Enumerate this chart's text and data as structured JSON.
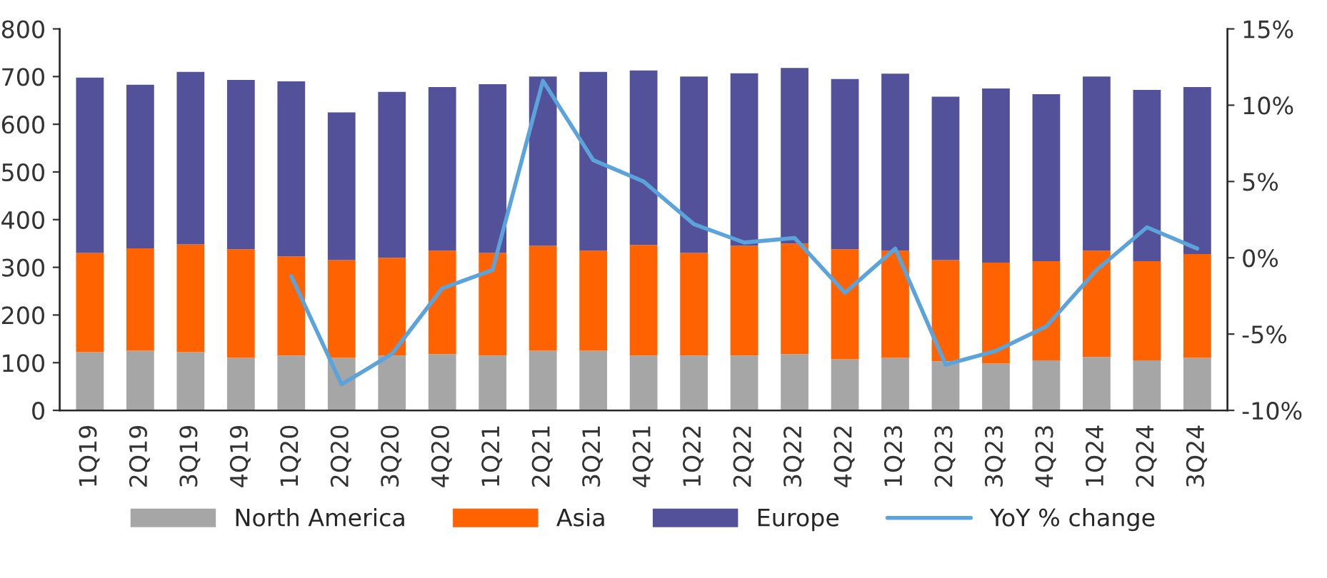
{
  "chart_data": {
    "type": "bar",
    "stacked": true,
    "categories": [
      "1Q19",
      "2Q19",
      "3Q19",
      "4Q19",
      "1Q20",
      "2Q20",
      "3Q20",
      "4Q20",
      "1Q21",
      "2Q21",
      "3Q21",
      "4Q21",
      "1Q22",
      "2Q22",
      "3Q22",
      "4Q22",
      "1Q23",
      "2Q23",
      "3Q23",
      "4Q23",
      "1Q24",
      "2Q24",
      "3Q24"
    ],
    "series": [
      {
        "name": "North America",
        "color": "#a6a6a6",
        "values": [
          122,
          125,
          122,
          110,
          115,
          110,
          115,
          118,
          115,
          125,
          125,
          115,
          115,
          115,
          118,
          107,
          110,
          103,
          98,
          105,
          112,
          105,
          110
        ]
      },
      {
        "name": "Asia",
        "color": "#ff6200",
        "values": [
          208,
          215,
          226,
          228,
          208,
          205,
          205,
          217,
          215,
          220,
          210,
          232,
          215,
          230,
          232,
          231,
          225,
          212,
          212,
          208,
          223,
          208,
          218
        ]
      },
      {
        "name": "Europe",
        "color": "#525199",
        "values": [
          368,
          343,
          362,
          355,
          367,
          310,
          348,
          343,
          354,
          355,
          375,
          366,
          370,
          362,
          368,
          357,
          371,
          343,
          365,
          350,
          365,
          359,
          350
        ]
      },
      {
        "name": "YoY % change",
        "type": "line",
        "axis": "y2",
        "color": "#5ba3db",
        "values": [
          null,
          null,
          null,
          null,
          -1.2,
          -8.3,
          -6.3,
          -2.0,
          -0.8,
          11.6,
          6.4,
          5.0,
          2.2,
          1.0,
          1.3,
          -2.3,
          0.6,
          -7.0,
          -6.1,
          -4.5,
          -0.8,
          2.0,
          0.6
        ]
      }
    ],
    "ylim": [
      0,
      800
    ],
    "yticks": [
      0,
      100,
      200,
      300,
      400,
      500,
      600,
      700,
      800
    ],
    "y2lim": [
      -10,
      15
    ],
    "y2ticks": [
      {
        "value": -10,
        "label": "-10%"
      },
      {
        "value": -5,
        "label": "-5%"
      },
      {
        "value": 0,
        "label": "0%"
      },
      {
        "value": 5,
        "label": "5%"
      },
      {
        "value": 10,
        "label": "10%"
      },
      {
        "value": 15,
        "label": "15%"
      }
    ],
    "grid": false,
    "legend": "bottom",
    "marker": "none",
    "line_style": "solid"
  }
}
